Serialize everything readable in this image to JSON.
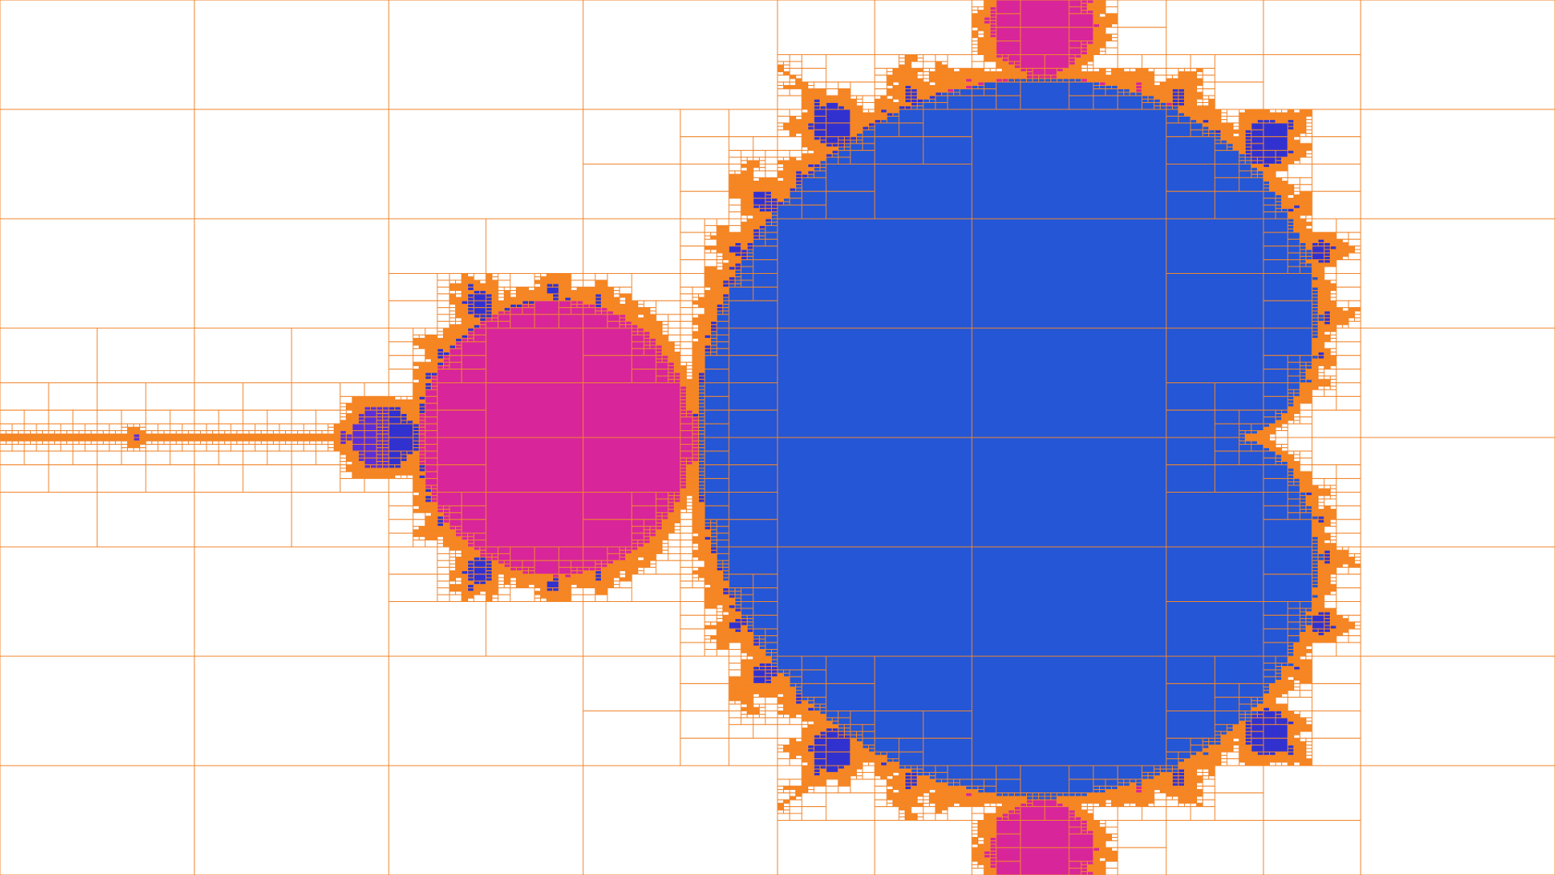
{
  "title": "",
  "view": {
    "re_min": -2.0,
    "re_max": 0.8,
    "im_center": 0.0,
    "max_iterations": 64
  },
  "colors": {
    "background": "#ffffff",
    "grid_line": "#f0862e",
    "boundary_fill": "#f8851e",
    "main_cardioid": "#2456d6",
    "period2_bulb": "#d8259a",
    "period3_bulbs": "#d8259a",
    "small_bulbs": "#5b2fd6",
    "tiny_bulbs": "#3131d0"
  },
  "legend": []
}
